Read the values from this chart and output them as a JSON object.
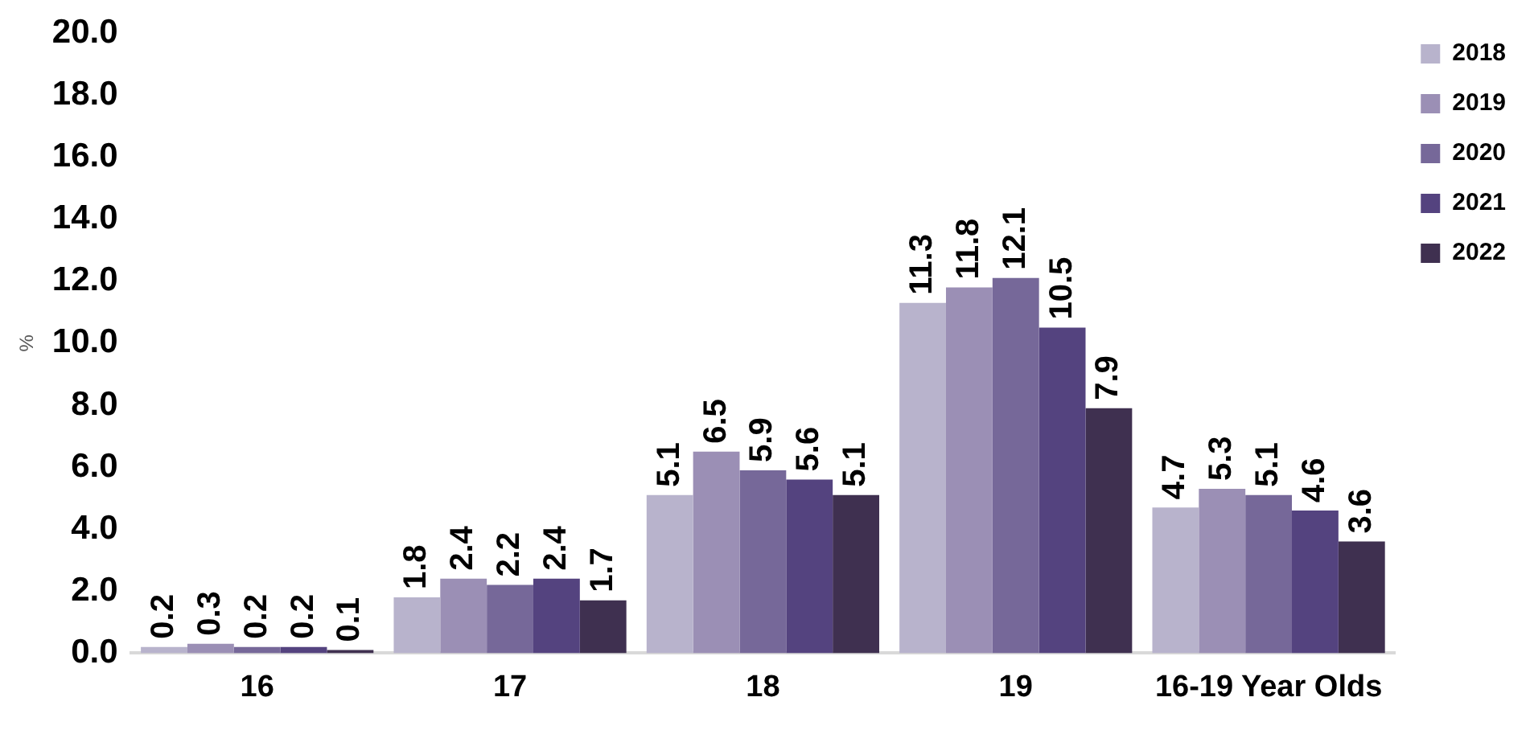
{
  "chart_data": {
    "type": "bar",
    "ylabel": "%",
    "categories": [
      "16",
      "17",
      "18",
      "19",
      "16-19 Year Olds"
    ],
    "series": [
      {
        "name": "2018",
        "color": "#b8b3cc",
        "values": [
          0.2,
          1.8,
          5.1,
          11.3,
          4.7
        ]
      },
      {
        "name": "2019",
        "color": "#9b8fb5",
        "values": [
          0.3,
          2.4,
          6.5,
          11.8,
          5.3
        ]
      },
      {
        "name": "2020",
        "color": "#766899",
        "values": [
          0.2,
          2.2,
          5.9,
          12.1,
          5.1
        ]
      },
      {
        "name": "2021",
        "color": "#54437f",
        "values": [
          0.2,
          2.4,
          5.6,
          10.5,
          4.6
        ]
      },
      {
        "name": "2022",
        "color": "#3f3050",
        "values": [
          0.1,
          1.7,
          5.1,
          7.9,
          3.6
        ]
      }
    ],
    "ylim": [
      0,
      20
    ],
    "yticks": [
      {
        "value": 0,
        "label": "0.0"
      },
      {
        "value": 2,
        "label": "2.0"
      },
      {
        "value": 4,
        "label": "4.0"
      },
      {
        "value": 6,
        "label": "6.0"
      },
      {
        "value": 8,
        "label": "8.0"
      },
      {
        "value": 10,
        "label": "10.0"
      },
      {
        "value": 12,
        "label": "12.0"
      },
      {
        "value": 14,
        "label": "14.0"
      },
      {
        "value": 16,
        "label": "16.0"
      },
      {
        "value": 18,
        "label": "18.0"
      },
      {
        "value": 20,
        "label": "20.0"
      }
    ],
    "grid": false,
    "legend": "top right",
    "data_labels": true
  }
}
